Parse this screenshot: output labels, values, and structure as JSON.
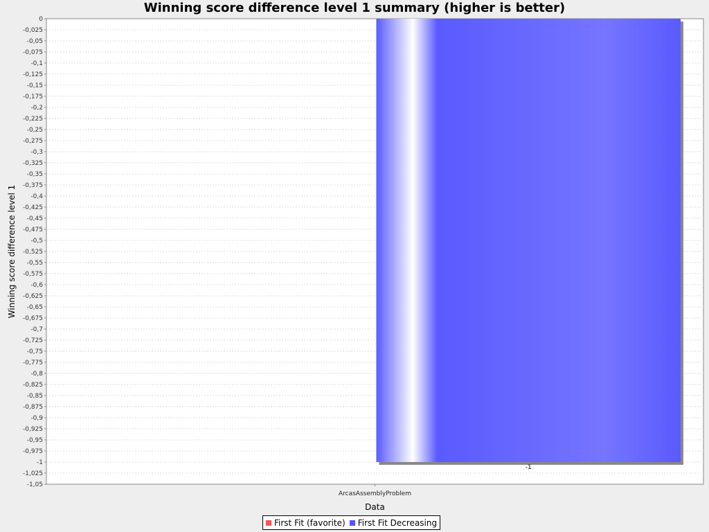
{
  "chart_data": {
    "type": "bar",
    "title": "Winning score difference level 1 summary (higher is better)",
    "xlabel": "Data",
    "ylabel": "Winning score difference level 1",
    "categories": [
      "ArcasAssemblyProblem"
    ],
    "series": [
      {
        "name": "First Fit (favorite)",
        "color": "#ff5555",
        "values": [
          0
        ]
      },
      {
        "name": "First Fit Decreasing",
        "color": "#5555ff",
        "values": [
          -1
        ]
      }
    ],
    "data_labels": [
      "",
      "-1"
    ],
    "ylim": [
      -1.05,
      0
    ],
    "ytick_step": 0.025,
    "decimal_separator": ",",
    "grid": true,
    "legend_position": "bottom"
  }
}
